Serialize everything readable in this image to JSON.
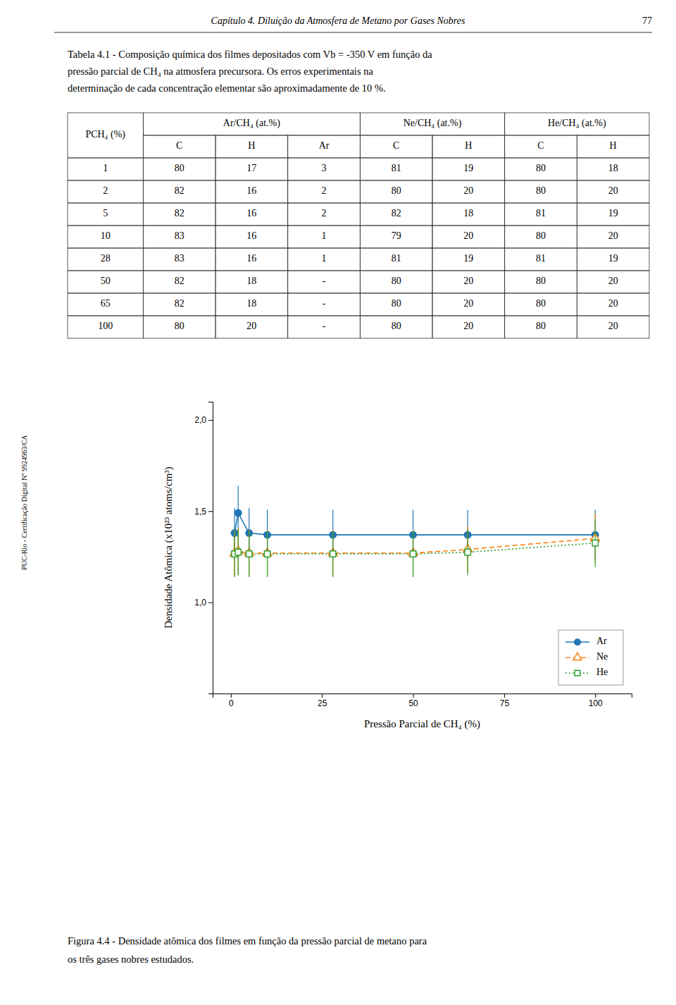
{
  "page_title": "Capítulo 4. Diluição da Atmosfera de Metano por Gases Nobres",
  "page_number": "77",
  "sidebar_text": "PUC-Rio - Certificação Digital Nº 9924963/CA",
  "chart_data": [
    {
      "type": "table",
      "title": [
        "Tabela 4.1 - Composição química dos filmes depositados com Vb = -350 V em função da",
        "pressão parcial de CH₄ na atmosfera precursora. Os erros experimentais na",
        "determinação de cada concentração elementar são aproximadamente de 10 %."
      ],
      "columns": [
        {
          "label": "PCH₄ (%)"
        },
        {
          "group": "Ar/CH₄ (at.%)",
          "label": "C"
        },
        {
          "group": "Ar/CH₄ (at.%)",
          "label": "H"
        },
        {
          "group": "Ar/CH₄ (at.%)",
          "label": "Ar"
        },
        {
          "group": "Ne/CH₄ (at.%)",
          "label": "C"
        },
        {
          "group": "Ne/CH₄ (at.%)",
          "label": "H"
        },
        {
          "group": "He/CH₄ (at.%)",
          "label": "C"
        },
        {
          "group": "He/CH₄ (at.%)",
          "label": "H"
        }
      ],
      "rows": [
        [
          1,
          80,
          17,
          3,
          81,
          19,
          80,
          18
        ],
        [
          2,
          82,
          16,
          2,
          80,
          20,
          80,
          20
        ],
        [
          5,
          82,
          16,
          2,
          82,
          18,
          81,
          19
        ],
        [
          10,
          83,
          16,
          1,
          79,
          20,
          80,
          20
        ],
        [
          28,
          83,
          16,
          1,
          81,
          19,
          81,
          19
        ],
        [
          50,
          82,
          18,
          "-",
          80,
          20,
          80,
          20
        ],
        [
          65,
          82,
          18,
          "-",
          80,
          20,
          80,
          20
        ],
        [
          100,
          80,
          20,
          "-",
          80,
          20,
          80,
          20
        ]
      ]
    },
    {
      "type": "line",
      "title": [
        "Figura 4.4 - Densidade atômica dos filmes em função da pressão parcial de metano para",
        "os três gases nobres estudados."
      ],
      "xlabel": "Pressão Parcial de CH₄ (%)",
      "ylabel": "Densidade Atômica (x10²³ atoms/cm³)",
      "x": [
        1,
        2,
        5,
        10,
        28,
        50,
        65,
        100
      ],
      "series": [
        {
          "name": "Ar",
          "marker": "circle",
          "line_style": "solid",
          "values": [
            1.38,
            1.49,
            1.38,
            1.37,
            1.37,
            1.37,
            1.37,
            1.37
          ],
          "errors": [
            0.138,
            0.149,
            0.138,
            0.137,
            0.137,
            0.137,
            0.137,
            0.137
          ]
        },
        {
          "name": "Ne",
          "marker": "triangle",
          "line_style": "dashed",
          "values": [
            1.27,
            1.28,
            1.27,
            1.27,
            1.27,
            1.27,
            1.29,
            1.35
          ],
          "errors": [
            0.127,
            0.128,
            0.127,
            0.127,
            0.127,
            0.127,
            0.129,
            0.135
          ]
        },
        {
          "name": "He",
          "marker": "square",
          "line_style": "dotted",
          "values": [
            1.265,
            1.275,
            1.265,
            1.265,
            1.265,
            1.265,
            1.275,
            1.325
          ],
          "errors": [
            0.1265,
            0.1275,
            0.1265,
            0.1265,
            0.1265,
            0.1265,
            0.1275,
            0.1325
          ]
        }
      ],
      "xlim": [
        -5,
        110
      ],
      "ylim": [
        0.5,
        2.1
      ],
      "xticks": [
        0,
        25,
        50,
        75,
        100
      ],
      "yticks": [
        {
          "value": 0.5,
          "label": null
        },
        {
          "value": 1.0,
          "label": "1,0"
        },
        {
          "value": 1.5,
          "label": "1,5"
        },
        {
          "value": 2.0,
          "label": "2,0"
        }
      ],
      "grid": false,
      "legend": "lower right"
    }
  ]
}
